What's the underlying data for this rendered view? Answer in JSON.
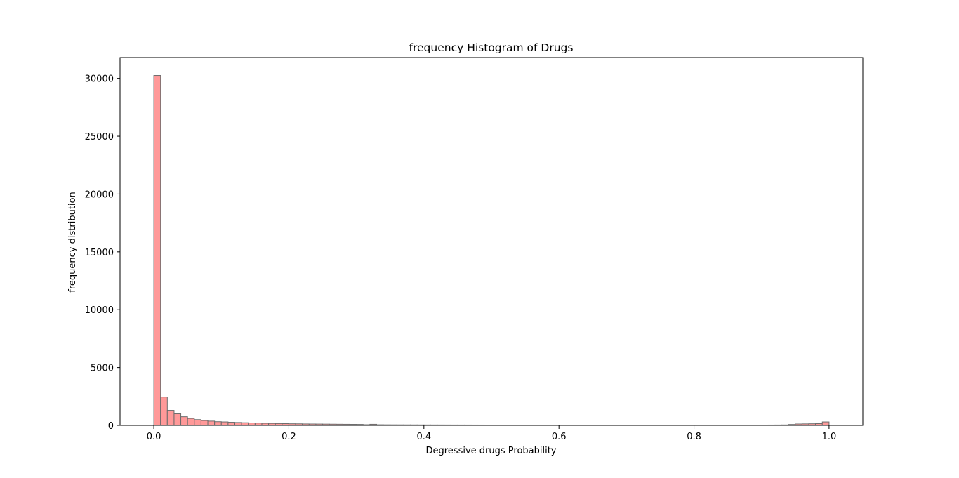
{
  "chart_data": {
    "type": "bar",
    "title": "frequency Histogram of Drugs",
    "xlabel": "Degressive drugs Probability",
    "ylabel": "frequency distribution",
    "xlim": [
      -0.05,
      1.05
    ],
    "ylim": [
      0,
      31800
    ],
    "x_ticks": [
      0.0,
      0.2,
      0.4,
      0.6,
      0.8,
      1.0
    ],
    "x_tick_labels": [
      "0.0",
      "0.2",
      "0.4",
      "0.6",
      "0.8",
      "1.0"
    ],
    "y_ticks": [
      0,
      5000,
      10000,
      15000,
      20000,
      25000,
      30000
    ],
    "y_tick_labels": [
      "0",
      "5000",
      "10000",
      "15000",
      "20000",
      "25000",
      "30000"
    ],
    "bar_color": "#ff9999",
    "edge_color": "#6b6b6b",
    "grid": false,
    "bin_width": 0.01,
    "bin_starts": [
      0.0,
      0.01,
      0.02,
      0.03,
      0.04,
      0.05,
      0.06,
      0.07,
      0.08,
      0.09,
      0.1,
      0.11,
      0.12,
      0.13,
      0.14,
      0.15,
      0.16,
      0.17,
      0.18,
      0.19,
      0.2,
      0.21,
      0.22,
      0.23,
      0.24,
      0.25,
      0.26,
      0.27,
      0.28,
      0.29,
      0.3,
      0.31,
      0.32,
      0.33,
      0.34,
      0.35,
      0.36,
      0.37,
      0.38,
      0.39,
      0.4,
      0.41,
      0.42,
      0.43,
      0.44,
      0.45,
      0.46,
      0.47,
      0.48,
      0.49,
      0.5,
      0.51,
      0.52,
      0.53,
      0.54,
      0.55,
      0.56,
      0.57,
      0.58,
      0.59,
      0.6,
      0.61,
      0.62,
      0.63,
      0.64,
      0.65,
      0.66,
      0.67,
      0.68,
      0.69,
      0.7,
      0.71,
      0.72,
      0.73,
      0.74,
      0.75,
      0.76,
      0.77,
      0.78,
      0.79,
      0.8,
      0.81,
      0.82,
      0.83,
      0.84,
      0.85,
      0.86,
      0.87,
      0.88,
      0.89,
      0.9,
      0.91,
      0.92,
      0.93,
      0.94,
      0.95,
      0.96,
      0.97,
      0.98,
      0.99
    ],
    "values": [
      30250,
      2450,
      1300,
      1000,
      750,
      600,
      500,
      420,
      370,
      320,
      300,
      270,
      250,
      230,
      210,
      200,
      180,
      170,
      160,
      150,
      140,
      135,
      125,
      120,
      115,
      110,
      105,
      100,
      95,
      90,
      85,
      60,
      95,
      55,
      50,
      48,
      46,
      44,
      42,
      40,
      39,
      38,
      37,
      36,
      35,
      34,
      33,
      32,
      31,
      30,
      30,
      29,
      28,
      28,
      27,
      27,
      26,
      26,
      25,
      25,
      25,
      24,
      24,
      24,
      23,
      23,
      23,
      22,
      22,
      22,
      22,
      22,
      21,
      21,
      21,
      21,
      21,
      21,
      21,
      21,
      22,
      22,
      22,
      23,
      23,
      24,
      25,
      26,
      27,
      28,
      30,
      32,
      35,
      40,
      80,
      120,
      130,
      140,
      150,
      300
    ]
  }
}
